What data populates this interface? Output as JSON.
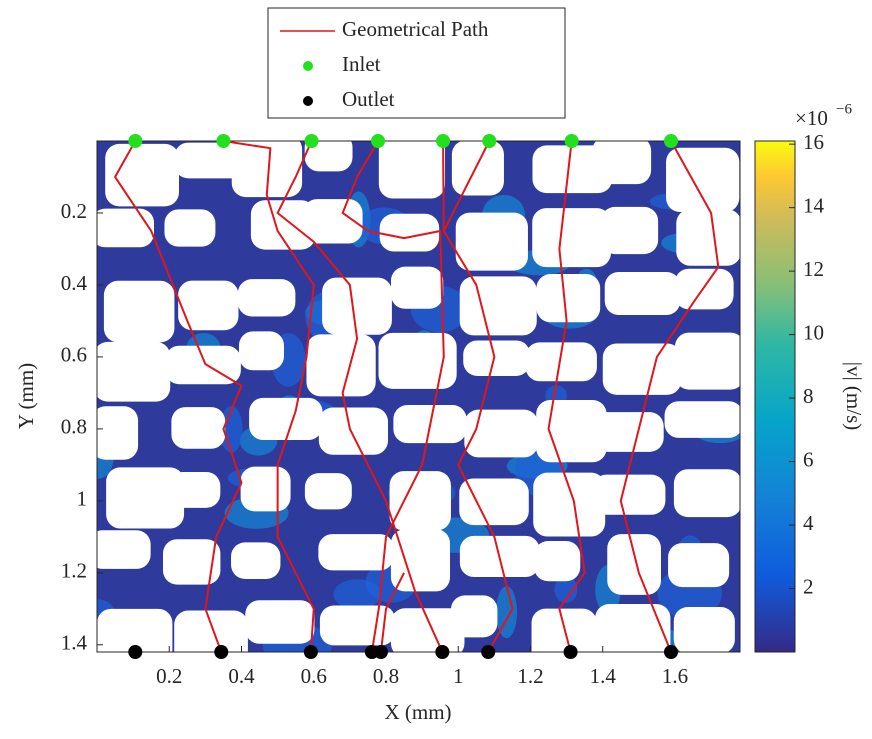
{
  "chart_data": {
    "type": "scatter",
    "xlabel": "X (mm)",
    "ylabel": "Y (mm)",
    "xlim": [
      0,
      1.78
    ],
    "ylim": [
      0,
      1.42
    ],
    "y_reversed": true,
    "xticks": [
      0.2,
      0.4,
      0.6,
      0.8,
      1,
      1.2,
      1.4,
      1.6
    ],
    "yticks": [
      0.2,
      0.4,
      0.6,
      0.8,
      1,
      1.2,
      1.4
    ],
    "series": [
      {
        "name": "Geometrical Path",
        "kind": "line",
        "color": "#e0161b",
        "x": [
          0.106,
          0.05,
          0.15,
          0.25,
          0.3,
          0.4,
          0.35,
          0.4,
          0.33,
          0.3,
          0.344,
          null,
          0.35,
          0.48,
          0.47,
          0.5,
          0.6,
          0.58,
          0.55,
          0.5,
          0.5,
          0.6,
          0.592,
          null,
          0.594,
          0.55,
          0.5,
          0.6,
          0.7,
          0.72,
          0.68,
          0.7,
          0.8,
          0.88,
          0.956,
          null,
          0.778,
          0.72,
          0.68,
          0.75,
          0.85,
          0.95,
          0.96,
          0.9,
          0.8,
          0.78,
          0.761,
          null,
          0.958,
          0.96,
          1.05,
          1.1,
          1.05,
          1.0,
          1.1,
          1.15,
          1.083,
          null,
          1.086,
          0.96,
          null,
          1.314,
          1.28,
          1.3,
          1.25,
          1.32,
          1.35,
          1.28,
          1.311,
          null,
          1.589,
          1.7,
          1.72,
          1.65,
          1.55,
          1.5,
          1.45,
          1.5,
          1.589,
          null,
          0.786,
          0.8,
          0.85
        ],
        "y": [
          0,
          0.1,
          0.25,
          0.5,
          0.62,
          0.68,
          0.8,
          0.95,
          1.1,
          1.3,
          1.42,
          null,
          0,
          0.02,
          0.15,
          0.25,
          0.4,
          0.6,
          0.75,
          0.9,
          1.1,
          1.3,
          1.42,
          null,
          0,
          0.1,
          0.2,
          0.28,
          0.4,
          0.55,
          0.7,
          0.8,
          1.0,
          1.25,
          1.42,
          null,
          0,
          0.1,
          0.2,
          0.25,
          0.27,
          0.25,
          0.6,
          0.9,
          1.1,
          1.3,
          1.42,
          null,
          0,
          0.25,
          0.4,
          0.6,
          0.8,
          0.9,
          1.1,
          1.3,
          1.42,
          null,
          0,
          0.25,
          null,
          0,
          0.3,
          0.5,
          0.8,
          1.0,
          1.2,
          1.3,
          1.42,
          null,
          0,
          0.2,
          0.35,
          0.45,
          0.6,
          0.8,
          1.0,
          1.2,
          1.42,
          null,
          1.42,
          1.3,
          1.2
        ]
      },
      {
        "name": "Inlet",
        "kind": "points",
        "color": "#22e01e",
        "x": [
          0.106,
          0.35,
          0.594,
          0.778,
          0.958,
          1.086,
          1.314,
          1.589
        ],
        "y": [
          0,
          0,
          0,
          0,
          0,
          0,
          0,
          0
        ]
      },
      {
        "name": "Outlet",
        "kind": "points",
        "color": "#000000",
        "x": [
          0.106,
          0.344,
          0.592,
          0.761,
          0.786,
          0.956,
          1.083,
          1.311,
          1.589
        ],
        "y": [
          1.42,
          1.42,
          1.42,
          1.42,
          1.42,
          1.42,
          1.42,
          1.42,
          1.42
        ]
      }
    ],
    "legend": "top",
    "colorbar": {
      "label": "|v| (m/s)",
      "multiplier": "×10",
      "exponent": "−6",
      "clim": [
        0,
        16.1
      ],
      "ticks": [
        2,
        4,
        6,
        8,
        10,
        12,
        14,
        16
      ]
    }
  }
}
